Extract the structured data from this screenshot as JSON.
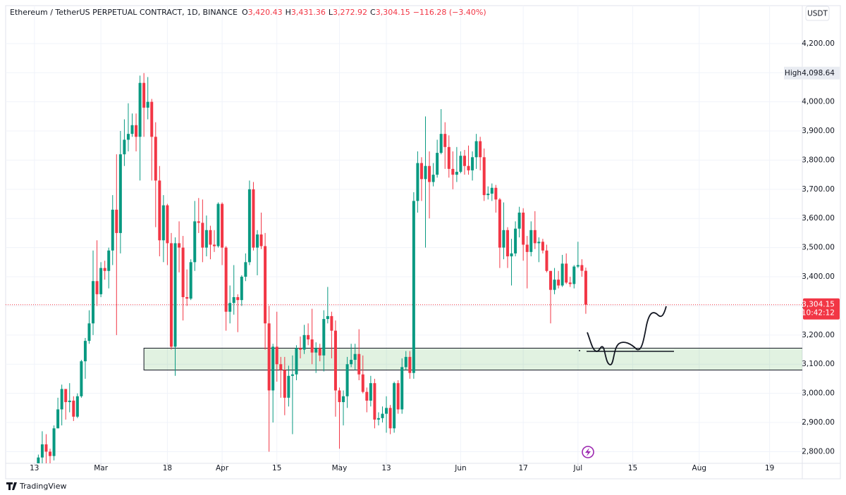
{
  "chart_data": {
    "type": "candlestick",
    "title": "Ethereum / TetherUS PERPETUAL CONTRACT, 1D, BINANCE",
    "ohlc_header": [
      {
        "key": "O",
        "value": "3,420.43"
      },
      {
        "key": "H",
        "value": "3,431.36"
      },
      {
        "key": "L",
        "value": "3,272.92"
      },
      {
        "key": "C",
        "value": "3,304.15"
      }
    ],
    "change": "−116.28 (−3.40%)",
    "currency": "USDT",
    "high_tag": {
      "label": "High",
      "value": 4098.64,
      "value_label": "4,098.64"
    },
    "last_tag": {
      "value": 3304.15,
      "value_label": "3,304.15",
      "countdown": "10:42:12"
    },
    "brand": "TradingView",
    "up_color": "#089981",
    "down_color": "#f23645",
    "grid": true,
    "zone": {
      "start": "Mar 12",
      "top": 3155,
      "bottom": 3080
    },
    "x": [
      "Feb 14",
      "Feb 15",
      "Feb 16",
      "Feb 17",
      "Feb 18",
      "Feb 19",
      "Feb 20",
      "Feb 21",
      "Feb 22",
      "Feb 23",
      "Feb 24",
      "Feb 25",
      "Feb 26",
      "Feb 27",
      "Feb 28",
      "Feb 29",
      "Mar 1",
      "Mar 2",
      "Mar 3",
      "Mar 4",
      "Mar 5",
      "Mar 6",
      "Mar 7",
      "Mar 8",
      "Mar 9",
      "Mar 10",
      "Mar 11",
      "Mar 12",
      "Mar 13",
      "Mar 14",
      "Mar 15",
      "Mar 16",
      "Mar 17",
      "Mar 18",
      "Mar 19",
      "Mar 20",
      "Mar 21",
      "Mar 22",
      "Mar 23",
      "Mar 24",
      "Mar 25",
      "Mar 26",
      "Mar 27",
      "Mar 28",
      "Mar 29",
      "Mar 30",
      "Mar 31",
      "Apr 1",
      "Apr 2",
      "Apr 3",
      "Apr 4",
      "Apr 5",
      "Apr 6",
      "Apr 7",
      "Apr 8",
      "Apr 9",
      "Apr 10",
      "Apr 11",
      "Apr 12",
      "Apr 13",
      "Apr 14",
      "Apr 15",
      "Apr 16",
      "Apr 17",
      "Apr 18",
      "Apr 19",
      "Apr 20",
      "Apr 21",
      "Apr 22",
      "Apr 23",
      "Apr 24",
      "Apr 25",
      "Apr 26",
      "Apr 27",
      "Apr 28",
      "Apr 29",
      "Apr 30",
      "May 1",
      "May 2",
      "May 3",
      "May 4",
      "May 5",
      "May 6",
      "May 7",
      "May 8",
      "May 9",
      "May 10",
      "May 11",
      "May 12",
      "May 13",
      "May 14",
      "May 15",
      "May 16",
      "May 17",
      "May 18",
      "May 19",
      "May 20",
      "May 21",
      "May 22",
      "May 23",
      "May 24",
      "May 25",
      "May 26",
      "May 27",
      "May 28",
      "May 29",
      "May 30",
      "May 31",
      "Jun 1",
      "Jun 2",
      "Jun 3",
      "Jun 4",
      "Jun 5",
      "Jun 6",
      "Jun 7",
      "Jun 8",
      "Jun 9",
      "Jun 10",
      "Jun 11",
      "Jun 12",
      "Jun 13",
      "Jun 14",
      "Jun 15",
      "Jun 16",
      "Jun 17",
      "Jun 18",
      "Jun 19",
      "Jun 20",
      "Jun 21",
      "Jun 22",
      "Jun 23",
      "Jun 24",
      "Jun 25",
      "Jun 26",
      "Jun 27",
      "Jun 28",
      "Jun 29",
      "Jun 30",
      "Jul 1",
      "Jul 2",
      "Jul 3"
    ],
    "open": [
      2660,
      2780,
      2825,
      2800,
      2785,
      2880,
      2945,
      3015,
      2970,
      2975,
      2920,
      2990,
      3110,
      3180,
      3240,
      3385,
      3340,
      3430,
      3420,
      3490,
      3630,
      3550,
      3820,
      3870,
      3890,
      3920,
      3880,
      4065,
      3980,
      4000,
      3880,
      3730,
      3525,
      3645,
      3515,
      3160,
      3515,
      3500,
      3330,
      3325,
      3450,
      3590,
      3585,
      3500,
      3560,
      3510,
      3505,
      3650,
      3500,
      3280,
      3310,
      3330,
      3320,
      3400,
      3450,
      3700,
      3500,
      3545,
      3505,
      3240,
      3010,
      3160,
      3100,
      3080,
      2985,
      3060,
      3065,
      3155,
      3150,
      3200,
      3185,
      3140,
      3155,
      3130,
      3255,
      3265,
      3215,
      3010,
      2970,
      2990,
      3100,
      3115,
      3135,
      3065,
      3005,
      2975,
      3035,
      2910,
      2915,
      2930,
      2950,
      2880,
      3035,
      2945,
      3090,
      3125,
      3070,
      3660,
      3790,
      3735,
      3780,
      3725,
      3750,
      3825,
      3890,
      3845,
      3770,
      3750,
      3760,
      3815,
      3780,
      3765,
      3810,
      3865,
      3810,
      3680,
      3685,
      3705,
      3665,
      3500,
      3560,
      3470,
      3480,
      3565,
      3620,
      3510,
      3485,
      3560,
      3515,
      3520,
      3490,
      3420,
      3355,
      3390,
      3370,
      3445,
      3380,
      3375,
      3435,
      3440,
      3420.43
    ],
    "high": [
      2790,
      2870,
      2860,
      2810,
      2890,
      2985,
      3030,
      3015,
      3035,
      2990,
      3000,
      3115,
      3190,
      3285,
      3490,
      3525,
      3450,
      3455,
      3500,
      3680,
      3820,
      3900,
      3940,
      3995,
      3960,
      3960,
      4090,
      4098.64,
      4085,
      4010,
      3930,
      3780,
      3680,
      3650,
      3550,
      3535,
      3590,
      3540,
      3425,
      3460,
      3660,
      3670,
      3665,
      3610,
      3575,
      3560,
      3655,
      3655,
      3505,
      3370,
      3440,
      3340,
      3405,
      3480,
      3730,
      3725,
      3560,
      3620,
      3550,
      3300,
      3170,
      3280,
      3125,
      3125,
      3095,
      3130,
      3165,
      3195,
      3235,
      3240,
      3290,
      3175,
      3170,
      3285,
      3365,
      3280,
      3250,
      3020,
      3010,
      3125,
      3170,
      3170,
      3220,
      3130,
      3020,
      3060,
      3050,
      2935,
      2955,
      2990,
      2960,
      3040,
      3045,
      3120,
      3145,
      3145,
      3690,
      3830,
      3810,
      3950,
      3830,
      3790,
      3870,
      3975,
      3930,
      3885,
      3830,
      3845,
      3830,
      3835,
      3850,
      3830,
      3890,
      3880,
      3840,
      3710,
      3720,
      3715,
      3670,
      3655,
      3570,
      3530,
      3590,
      3640,
      3635,
      3540,
      3590,
      3625,
      3535,
      3530,
      3510,
      3420,
      3430,
      3420,
      3475,
      3480,
      3400,
      3440,
      3520,
      3460,
      3431.36
    ],
    "low": [
      2650,
      2760,
      2760,
      2720,
      2770,
      2880,
      2890,
      2910,
      2935,
      2905,
      2915,
      2985,
      3050,
      3170,
      3200,
      3300,
      3330,
      3390,
      3360,
      3440,
      3200,
      3480,
      3780,
      3830,
      3880,
      3830,
      3730,
      3880,
      3940,
      3730,
      3570,
      3470,
      3450,
      3440,
      3150,
      3060,
      3415,
      3250,
      3300,
      3320,
      3420,
      3550,
      3450,
      3470,
      3460,
      3485,
      3500,
      3440,
      3215,
      3240,
      3270,
      3210,
      3300,
      3385,
      3440,
      3490,
      3405,
      3495,
      3150,
      2800,
      2900,
      3040,
      2985,
      2925,
      2955,
      2860,
      3045,
      3120,
      3135,
      3165,
      3100,
      3070,
      3110,
      3075,
      3240,
      3120,
      2920,
      2810,
      2890,
      2950,
      3090,
      3080,
      3045,
      3000,
      2935,
      2955,
      2880,
      2890,
      2900,
      2865,
      2860,
      2865,
      2930,
      2930,
      3080,
      3050,
      3050,
      3620,
      3660,
      3500,
      3600,
      3710,
      3740,
      3820,
      3770,
      3740,
      3700,
      3725,
      3755,
      3750,
      3750,
      3730,
      3770,
      3765,
      3660,
      3665,
      3660,
      3620,
      3430,
      3460,
      3430,
      3370,
      3470,
      3535,
      3455,
      3360,
      3470,
      3495,
      3450,
      3480,
      3415,
      3240,
      3340,
      3360,
      3365,
      3375,
      3365,
      3360,
      3430,
      3400,
      3272.92
    ],
    "close": [
      2780,
      2825,
      2800,
      2785,
      2880,
      2945,
      3015,
      2970,
      2975,
      2920,
      2990,
      3110,
      3180,
      3240,
      3385,
      3340,
      3430,
      3420,
      3490,
      3630,
      3550,
      3820,
      3870,
      3890,
      3920,
      3880,
      4065,
      3980,
      4000,
      3880,
      3730,
      3525,
      3645,
      3515,
      3160,
      3515,
      3500,
      3330,
      3325,
      3450,
      3590,
      3585,
      3500,
      3560,
      3510,
      3505,
      3650,
      3500,
      3280,
      3310,
      3330,
      3320,
      3400,
      3450,
      3700,
      3500,
      3545,
      3505,
      3240,
      3010,
      3160,
      3100,
      3080,
      2985,
      3060,
      3065,
      3155,
      3150,
      3200,
      3185,
      3140,
      3155,
      3130,
      3255,
      3265,
      3215,
      3010,
      2970,
      2990,
      3100,
      3115,
      3135,
      3065,
      3005,
      2975,
      3035,
      2910,
      2915,
      2930,
      2950,
      2880,
      3035,
      2945,
      3090,
      3125,
      3070,
      3660,
      3790,
      3735,
      3780,
      3725,
      3750,
      3825,
      3890,
      3845,
      3770,
      3750,
      3760,
      3815,
      3780,
      3765,
      3810,
      3865,
      3810,
      3680,
      3685,
      3705,
      3665,
      3500,
      3560,
      3470,
      3480,
      3565,
      3620,
      3510,
      3485,
      3560,
      3515,
      3520,
      3490,
      3420,
      3355,
      3390,
      3370,
      3445,
      3380,
      3375,
      3435,
      3440,
      3420.43,
      3304.15
    ],
    "xlim": [
      "Feb 6",
      "Aug 27"
    ],
    "xticks": [
      {
        "value": "Feb 13",
        "label": "13"
      },
      {
        "value": "Mar 1",
        "label": "Mar"
      },
      {
        "value": "Mar 18",
        "label": "18"
      },
      {
        "value": "Apr 1",
        "label": "Apr"
      },
      {
        "value": "Apr 15",
        "label": "15"
      },
      {
        "value": "May 1",
        "label": "May"
      },
      {
        "value": "May 13",
        "label": "13"
      },
      {
        "value": "Jun 1",
        "label": "Jun"
      },
      {
        "value": "Jun 17",
        "label": "17"
      },
      {
        "value": "Jul 1",
        "label": "Jul"
      },
      {
        "value": "Jul 15",
        "label": "15"
      },
      {
        "value": "Aug 1",
        "label": "Aug"
      },
      {
        "value": "Aug 19",
        "label": "19"
      }
    ],
    "ylim": [
      2760,
      4330
    ],
    "yticks": [
      {
        "value": 2800,
        "label": "2,800.00"
      },
      {
        "value": 2900,
        "label": "2,900.00"
      },
      {
        "value": 3000,
        "label": "3,000.00"
      },
      {
        "value": 3100,
        "label": "3,100.00"
      },
      {
        "value": 3200,
        "label": "3,200.00"
      },
      {
        "value": 3300,
        "label": "3,300.00"
      },
      {
        "value": 3400,
        "label": "3,400.00"
      },
      {
        "value": 3500,
        "label": "3,500.00"
      },
      {
        "value": 3600,
        "label": "3,600.00"
      },
      {
        "value": 3700,
        "label": "3,700.00"
      },
      {
        "value": 3800,
        "label": "3,800.00"
      },
      {
        "value": 3900,
        "label": "3,900.00"
      },
      {
        "value": 4000,
        "label": "4,000.00"
      },
      {
        "value": 4100,
        "label": "4,100.00"
      },
      {
        "value": 4200,
        "label": "4,200.00"
      }
    ]
  }
}
